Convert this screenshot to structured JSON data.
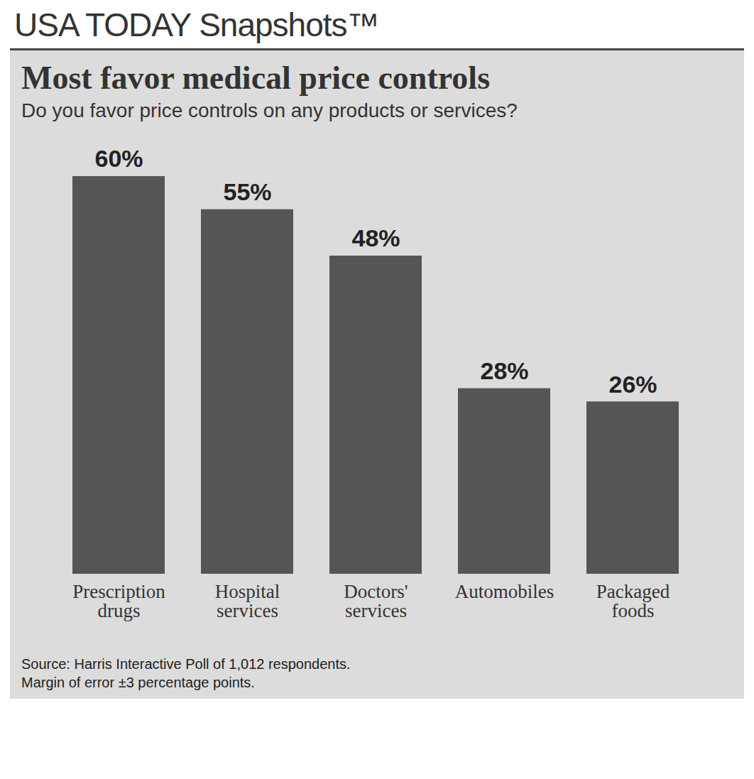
{
  "chart_data": {
    "type": "bar",
    "header": "USA TODAY Snapshots™",
    "title": "Most favor medical price controls",
    "subtitle": "Do you favor price controls on any products or services?",
    "categories": [
      "Prescription drugs",
      "Hospital services",
      "Doctors' services",
      "Automobiles",
      "Packaged foods"
    ],
    "values": [
      60,
      55,
      48,
      28,
      26
    ],
    "value_labels": [
      "60%",
      "55%",
      "48%",
      "28%",
      "26%"
    ],
    "data_labels": true,
    "tick_labels": "x",
    "color": "#555555",
    "source": "Source: Harris Interactive Poll of 1,012 respondents.",
    "note": "Margin of error ±3 percentage points."
  }
}
